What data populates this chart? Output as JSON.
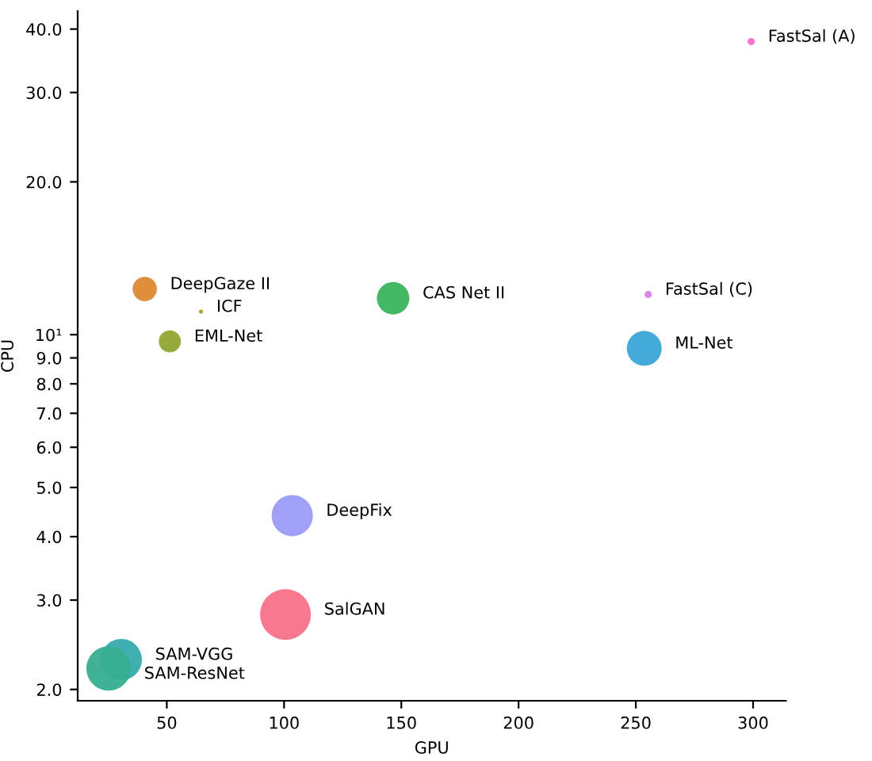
{
  "chart_data": {
    "type": "bubble",
    "xlabel": "GPU",
    "ylabel": "CPU",
    "log": "y",
    "xlim": [
      12,
      314
    ],
    "xticks": [
      50,
      100,
      150,
      200,
      250,
      300
    ],
    "ylim": [
      1.9,
      43.4
    ],
    "yticks": [
      {
        "value": 2,
        "label": "2.0"
      },
      {
        "value": 3,
        "label": "3.0"
      },
      {
        "value": 4,
        "label": "4.0"
      },
      {
        "value": 5,
        "label": "5.0"
      },
      {
        "value": 6,
        "label": "6.0"
      },
      {
        "value": 7,
        "label": "7.0"
      },
      {
        "value": 8,
        "label": "8.0"
      },
      {
        "value": 9,
        "label": "9.0"
      },
      {
        "value": 10,
        "label": "10¹"
      },
      {
        "value": 20,
        "label": "20.0"
      },
      {
        "value": 30,
        "label": "30.0"
      },
      {
        "value": 40,
        "label": "40.0"
      }
    ],
    "grid": false,
    "legend": false,
    "series": [
      {
        "name": "SalGAN",
        "color": "#f77189",
        "x": [
          100.6
        ],
        "values": [
          2.81
        ],
        "sizes": [
          1
        ]
      },
      {
        "name": "DeepGaze II",
        "color": "#dc8932",
        "x": [
          40.6
        ],
        "values": [
          12.3
        ],
        "sizes": [
          0.23
        ]
      },
      {
        "name": "ICF",
        "color": "#ae9d31",
        "x": [
          64.6
        ],
        "values": [
          11.1
        ],
        "sizes": [
          0.007
        ]
      },
      {
        "name": "EML-Net",
        "color": "#8fa833",
        "x": [
          51.3
        ],
        "values": [
          9.7
        ],
        "sizes": [
          0.19
        ]
      },
      {
        "name": "CAS Net II",
        "color": "#3bb45e",
        "x": [
          146.5
        ],
        "values": [
          11.8
        ],
        "sizes": [
          0.41
        ]
      },
      {
        "name": "SAM-VGG",
        "color": "#37abae",
        "x": [
          30.6
        ],
        "values": [
          2.29
        ],
        "sizes": [
          0.66
        ]
      },
      {
        "name": "SAM-ResNet",
        "color": "#36ae8f",
        "x": [
          25.2
        ],
        "values": [
          2.2
        ],
        "sizes": [
          0.77
        ]
      },
      {
        "name": "ML-Net",
        "color": "#3aa7d6",
        "x": [
          253.6
        ],
        "values": [
          9.4
        ],
        "sizes": [
          0.47
        ]
      },
      {
        "name": "DeepFix",
        "color": "#9a9cf5",
        "x": [
          103.5
        ],
        "values": [
          4.4
        ],
        "sizes": [
          0.66
        ]
      },
      {
        "name": "FastSal (C)",
        "color": "#dc7ef1",
        "x": [
          255.3
        ],
        "values": [
          12.0
        ],
        "sizes": [
          0.02
        ]
      },
      {
        "name": "FastSal (A)",
        "color": "#f36bcc",
        "x": [
          299.2
        ],
        "values": [
          37.8
        ],
        "sizes": [
          0.02
        ]
      }
    ]
  }
}
